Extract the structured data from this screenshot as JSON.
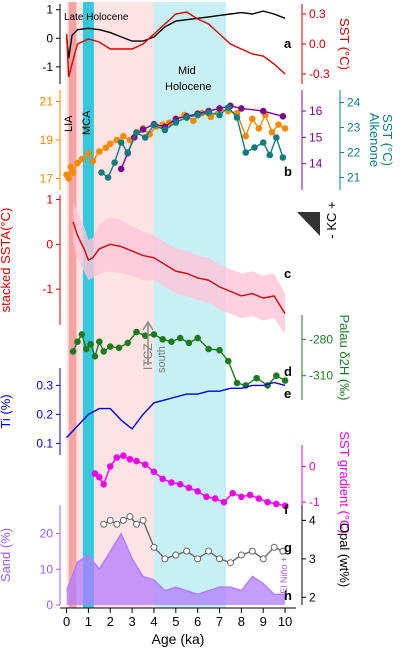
{
  "chart_data": {
    "type": "line",
    "x_axis": {
      "label": "Age (ka)",
      "range": [
        -0.3,
        10.5
      ],
      "ticks": [
        0,
        1,
        2,
        3,
        4,
        5,
        6,
        7,
        8,
        9,
        10
      ]
    },
    "shaded_intervals": [
      {
        "name": "Late Holocene",
        "from": 0,
        "to": 4.0,
        "color": "#fde3e3"
      },
      {
        "name": "Mid Holocene",
        "from": 4.0,
        "to": 7.3,
        "color": "#c8f0f4"
      },
      {
        "name": "LIA",
        "from": 0.1,
        "to": 0.45,
        "color": "#f7a3a3"
      },
      {
        "name": "MCA",
        "from": 0.75,
        "to": 1.25,
        "color": "#35c8dc"
      }
    ],
    "annotations": {
      "late_holocene": "Late Holocene",
      "mid": "Mid",
      "holocene": "Holocene",
      "lia": "LIA",
      "mca": "MCA",
      "itcz": "ITCZ",
      "south": "south",
      "kc": "- KC +",
      "el_nino": "- El Niño +"
    },
    "panel_labels": [
      "a",
      "b",
      "c",
      "d",
      "e",
      "f",
      "g",
      "h"
    ],
    "panels": [
      {
        "id": "a",
        "series": [
          {
            "axis": "left",
            "color": "#000000",
            "x": [
              0,
              0.1,
              0.25,
              0.5,
              1,
              1.5,
              2,
              2.5,
              3,
              3.5,
              4,
              4.5,
              5,
              5.5,
              6,
              6.5,
              7,
              7.5,
              8,
              8.5,
              9,
              9.5,
              10
            ],
            "y": [
              0.1,
              -0.7,
              0.1,
              0.3,
              0.35,
              0.3,
              0.2,
              0.05,
              -0.1,
              -0.1,
              0.05,
              0.4,
              0.6,
              0.65,
              0.7,
              0.75,
              0.8,
              0.85,
              0.9,
              0.85,
              0.95,
              0.85,
              0.7
            ]
          },
          {
            "axis": "right",
            "color": "#d40000",
            "x": [
              0,
              0.1,
              0.25,
              0.5,
              1,
              1.5,
              2,
              2.5,
              3,
              3.5,
              4,
              4.5,
              5,
              5.5,
              6,
              6.5,
              7,
              7.5,
              8,
              8.5,
              9,
              9.5,
              10
            ],
            "y": [
              0.1,
              -0.33,
              -0.2,
              0,
              0.05,
              0.02,
              -0.05,
              -0.05,
              -0.05,
              0,
              0.1,
              0.2,
              0.3,
              0.32,
              0.25,
              0.2,
              0.1,
              0,
              -0.05,
              -0.1,
              -0.12,
              -0.2,
              -0.3
            ]
          }
        ],
        "left_axis": {
          "ticks": [
            1,
            0,
            -1
          ],
          "range": [
            -1.6,
            1.2
          ]
        },
        "right_axis": {
          "label": "SST (°C)",
          "ticks": [
            "0.3",
            "0.0",
            "-0.3"
          ],
          "range": [
            -0.4,
            0.4
          ]
        }
      },
      {
        "id": "b",
        "series": [
          {
            "axis": "left",
            "color": "#f58a00",
            "x": [
              0,
              0.1,
              0.2,
              0.3,
              0.5,
              0.7,
              1.0,
              1.2,
              1.5,
              1.8,
              2.0,
              2.3,
              2.6,
              2.9,
              3.2,
              3.5,
              3.8,
              4.1,
              4.4,
              4.7,
              5.0,
              5.4,
              5.8,
              6.2,
              6.6,
              7.0,
              7.4,
              7.8,
              8.2,
              8.5,
              8.8,
              9.1,
              9.4,
              9.7,
              10.0
            ],
            "y": [
              17.2,
              17.0,
              17.6,
              17.3,
              17.8,
              18.0,
              18.3,
              17.9,
              18.4,
              18.6,
              18.8,
              19.0,
              19.2,
              19.0,
              19.4,
              19.6,
              19.3,
              19.7,
              19.8,
              19.9,
              20.1,
              20.3,
              20.0,
              20.4,
              20.2,
              20.6,
              20.5,
              20.4,
              19.2,
              20.1,
              19.6,
              20.3,
              19.4,
              19.8,
              19.6
            ]
          },
          {
            "axis": "right_inner",
            "color": "#7a0a8c",
            "x": [
              2.5,
              2.8,
              3.1,
              3.5,
              4.0,
              4.5,
              5.0,
              5.5,
              6.0,
              6.5,
              7.0,
              7.5,
              8.0,
              9.0,
              9.9
            ],
            "y": [
              13.8,
              14.4,
              15.0,
              15.3,
              15.5,
              15.4,
              15.7,
              15.8,
              15.9,
              16.0,
              16.1,
              16.2,
              16.1,
              16.0,
              15.8
            ]
          },
          {
            "axis": "right_outer",
            "color": "#0f7d80",
            "x": [
              1.6,
              1.9,
              2.2,
              2.5,
              2.8,
              3.2,
              3.6,
              4.0,
              4.5,
              5.0,
              5.5,
              6.0,
              6.5,
              7.0,
              7.4,
              7.8,
              8.2,
              8.6,
              9.0,
              9.3,
              9.6,
              9.9
            ],
            "y": [
              21.2,
              21.0,
              21.6,
              22.4,
              22.0,
              22.8,
              22.6,
              23.1,
              22.9,
              23.2,
              23.4,
              23.5,
              23.6,
              23.5,
              23.8,
              23.4,
              22.0,
              22.2,
              22.4,
              21.9,
              22.6,
              21.8
            ]
          }
        ],
        "left_axis": {
          "ticks": [
            21,
            19,
            17
          ],
          "range": [
            16.4,
            21.6
          ]
        },
        "right_inner_axis": {
          "ticks": [
            16,
            15,
            14
          ],
          "range": [
            13.0,
            16.8
          ]
        },
        "right_outer_axis": {
          "label": "Alkenone\nSST (°C)",
          "ticks": [
            24,
            23,
            22,
            21
          ],
          "range": [
            20.5,
            24.5
          ]
        }
      },
      {
        "id": "c",
        "series": [
          {
            "axis": "left",
            "color": "#d40000",
            "band_color": "#ffc6d8",
            "x": [
              0.3,
              0.5,
              0.8,
              1.0,
              1.2,
              1.5,
              2.0,
              2.5,
              3.0,
              3.5,
              4.0,
              4.5,
              5.0,
              5.5,
              6.0,
              6.5,
              7.0,
              7.5,
              8.0,
              8.5,
              9.0,
              9.5,
              10.0
            ],
            "y": [
              0.5,
              0.2,
              -0.1,
              -0.35,
              -0.3,
              -0.1,
              0.0,
              -0.05,
              -0.15,
              -0.25,
              -0.3,
              -0.45,
              -0.6,
              -0.65,
              -0.75,
              -0.8,
              -0.95,
              -1.05,
              -1.15,
              -1.1,
              -1.2,
              -1.15,
              -1.55
            ],
            "band": [
              0.45,
              0.5,
              0.5,
              0.45,
              0.45,
              0.55,
              0.6,
              0.6,
              0.55,
              0.55,
              0.5,
              0.5,
              0.5,
              0.5,
              0.5,
              0.5,
              0.5,
              0.5,
              0.5,
              0.5,
              0.5,
              0.5,
              0.45
            ]
          }
        ],
        "left_axis": {
          "label": "stacked SSTA(°C)",
          "ticks": [
            "1",
            "0",
            "-1"
          ],
          "range": [
            -1.8,
            1.1
          ]
        }
      },
      {
        "id": "d",
        "series": [
          {
            "axis": "right",
            "color": "#1e7a1e",
            "x": [
              0.3,
              0.5,
              0.7,
              0.9,
              1.1,
              1.3,
              1.5,
              1.7,
              2.0,
              2.4,
              2.8,
              3.2,
              3.6,
              4.0,
              4.4,
              4.8,
              5.2,
              5.6,
              6.0,
              6.5,
              7.0,
              7.4,
              7.8,
              8.2,
              8.7,
              9.2,
              9.6,
              10.0
            ],
            "y": [
              -290,
              -282,
              -276,
              -288,
              -284,
              -294,
              -282,
              -290,
              -286,
              -287,
              -283,
              -274,
              -277,
              -276,
              -280,
              -282,
              -279,
              -283,
              -279,
              -288,
              -289,
              -298,
              -316,
              -318,
              -312,
              -318,
              -310,
              -314
            ]
          }
        ],
        "right_axis": {
          "label": "Palau δ2H (‰)",
          "ticks": [
            -280,
            -310
          ],
          "range": [
            -330,
            -260
          ]
        }
      },
      {
        "id": "e",
        "series": [
          {
            "axis": "left",
            "color": "#0000dd",
            "x": [
              0,
              0.5,
              1,
              1.5,
              2,
              2.5,
              3,
              3.5,
              4,
              4.5,
              5,
              5.5,
              6,
              6.5,
              7,
              7.5,
              8,
              8.5,
              9,
              9.5,
              10
            ],
            "y": [
              0.12,
              0.16,
              0.2,
              0.22,
              0.22,
              0.18,
              0.15,
              0.2,
              0.24,
              0.25,
              0.26,
              0.27,
              0.27,
              0.28,
              0.28,
              0.29,
              0.29,
              0.3,
              0.3,
              0.31,
              0.3
            ]
          }
        ],
        "left_axis": {
          "label": "Ti (%)",
          "ticks": [
            "0.1",
            "0.2",
            "0.3"
          ],
          "range": [
            0.06,
            0.36
          ]
        }
      },
      {
        "id": "f",
        "series": [
          {
            "axis": "right",
            "color": "#ee00ee",
            "x": [
              1.3,
              1.5,
              1.7,
              2.0,
              2.3,
              2.6,
              2.9,
              3.2,
              3.6,
              4.0,
              4.4,
              4.8,
              5.2,
              5.6,
              6.0,
              6.4,
              6.8,
              7.2,
              7.6,
              8.0,
              8.4,
              8.8,
              9.2,
              9.6,
              10.0
            ],
            "y": [
              -0.2,
              -0.3,
              -0.5,
              0.0,
              0.25,
              0.3,
              0.2,
              0.15,
              0.05,
              -0.15,
              -0.35,
              -0.45,
              -0.5,
              -0.6,
              -0.7,
              -0.85,
              -0.9,
              -1.0,
              -0.75,
              -0.85,
              -0.8,
              -0.9,
              -1.0,
              -1.05,
              -1.1
            ]
          }
        ],
        "right_axis": {
          "label": "SST gradient (°C)",
          "ticks": [
            "0",
            "-1"
          ],
          "range": [
            -1.5,
            0.6
          ]
        }
      },
      {
        "id": "g",
        "series": [
          {
            "axis": "right",
            "color": "#666666",
            "x": [
              1.7,
              2.0,
              2.3,
              2.6,
              2.9,
              3.2,
              3.5,
              4.0,
              4.5,
              5.0,
              5.5,
              6.0,
              6.5,
              7.0,
              7.5,
              8.0,
              8.5,
              9.0,
              9.5,
              9.9
            ],
            "y": [
              3.9,
              4.0,
              3.9,
              4.0,
              4.1,
              3.9,
              4.0,
              3.3,
              3.0,
              3.1,
              3.2,
              3.0,
              3.2,
              3.0,
              2.9,
              3.1,
              3.2,
              3.0,
              3.3,
              3.2
            ]
          }
        ],
        "right_axis": {
          "label": "Opal (wt%)",
          "ticks": [
            4,
            3,
            2
          ],
          "range": [
            1.8,
            4.4
          ]
        }
      },
      {
        "id": "h",
        "series": [
          {
            "axis": "left",
            "color": "#b27cff",
            "fill": true,
            "x": [
              0,
              0.5,
              1,
              1.5,
              2,
              2.5,
              3,
              3.5,
              4,
              4.5,
              5,
              5.5,
              6,
              6.5,
              7,
              7.5,
              8,
              8.5,
              9,
              9.5,
              10
            ],
            "y": [
              4,
              12,
              14,
              10,
              15,
              20,
              13,
              8,
              7,
              4,
              5,
              4,
              3,
              4,
              5,
              5,
              4,
              8,
              6,
              3,
              3
            ]
          }
        ],
        "left_axis": {
          "label": "Sand (%)",
          "ticks": [
            20,
            10,
            0
          ],
          "range": [
            0,
            28
          ]
        }
      }
    ],
    "kc_triangle_color": "#333333"
  }
}
